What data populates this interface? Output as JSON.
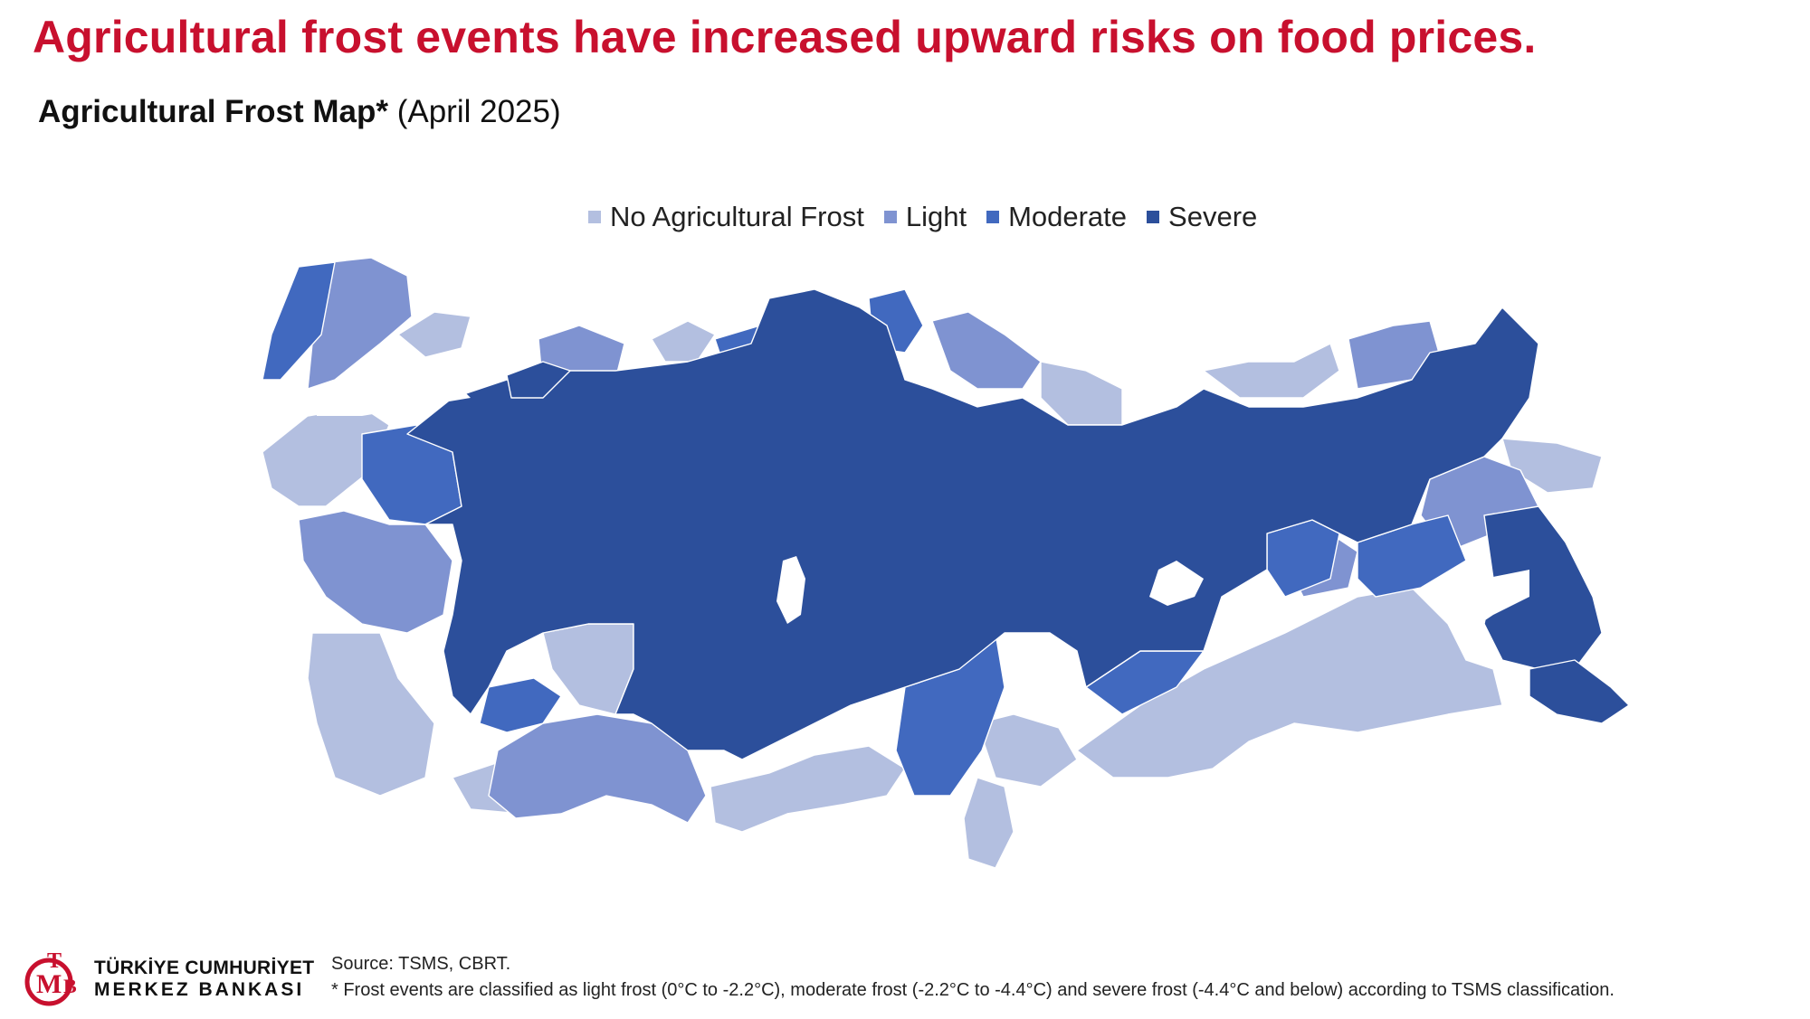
{
  "headline": "Agricultural frost events have increased upward risks on food prices.",
  "subtitle": {
    "strong": "Agricultural Frost Map*",
    "normal": " (April 2025)"
  },
  "legend": {
    "items": [
      {
        "label": "No Agricultural Frost",
        "color": "#b3bfe0"
      },
      {
        "label": "Light",
        "color": "#7f93d1"
      },
      {
        "label": "Moderate",
        "color": "#4169bf"
      },
      {
        "label": "Severe",
        "color": "#2c4f9b"
      }
    ]
  },
  "map": {
    "water_color": "#ffffff",
    "category_colors": {
      "none": "#b3bfe0",
      "light": "#7f93d1",
      "moderate": "#4169bf",
      "severe": "#2c4f9b"
    }
  },
  "logo": {
    "line1": "TÜRKİYE CUMHURİYET",
    "line2": "MERKEZ BANKASI",
    "brand_color": "#c8102e"
  },
  "source": "Source: TSMS, CBRT.",
  "footnote": "* Frost events are classified as light frost (0°C to -2.2°C), moderate frost (-2.2°C to -4.4°C) and severe frost (-4.4°C and below) according to TSMS classification."
}
